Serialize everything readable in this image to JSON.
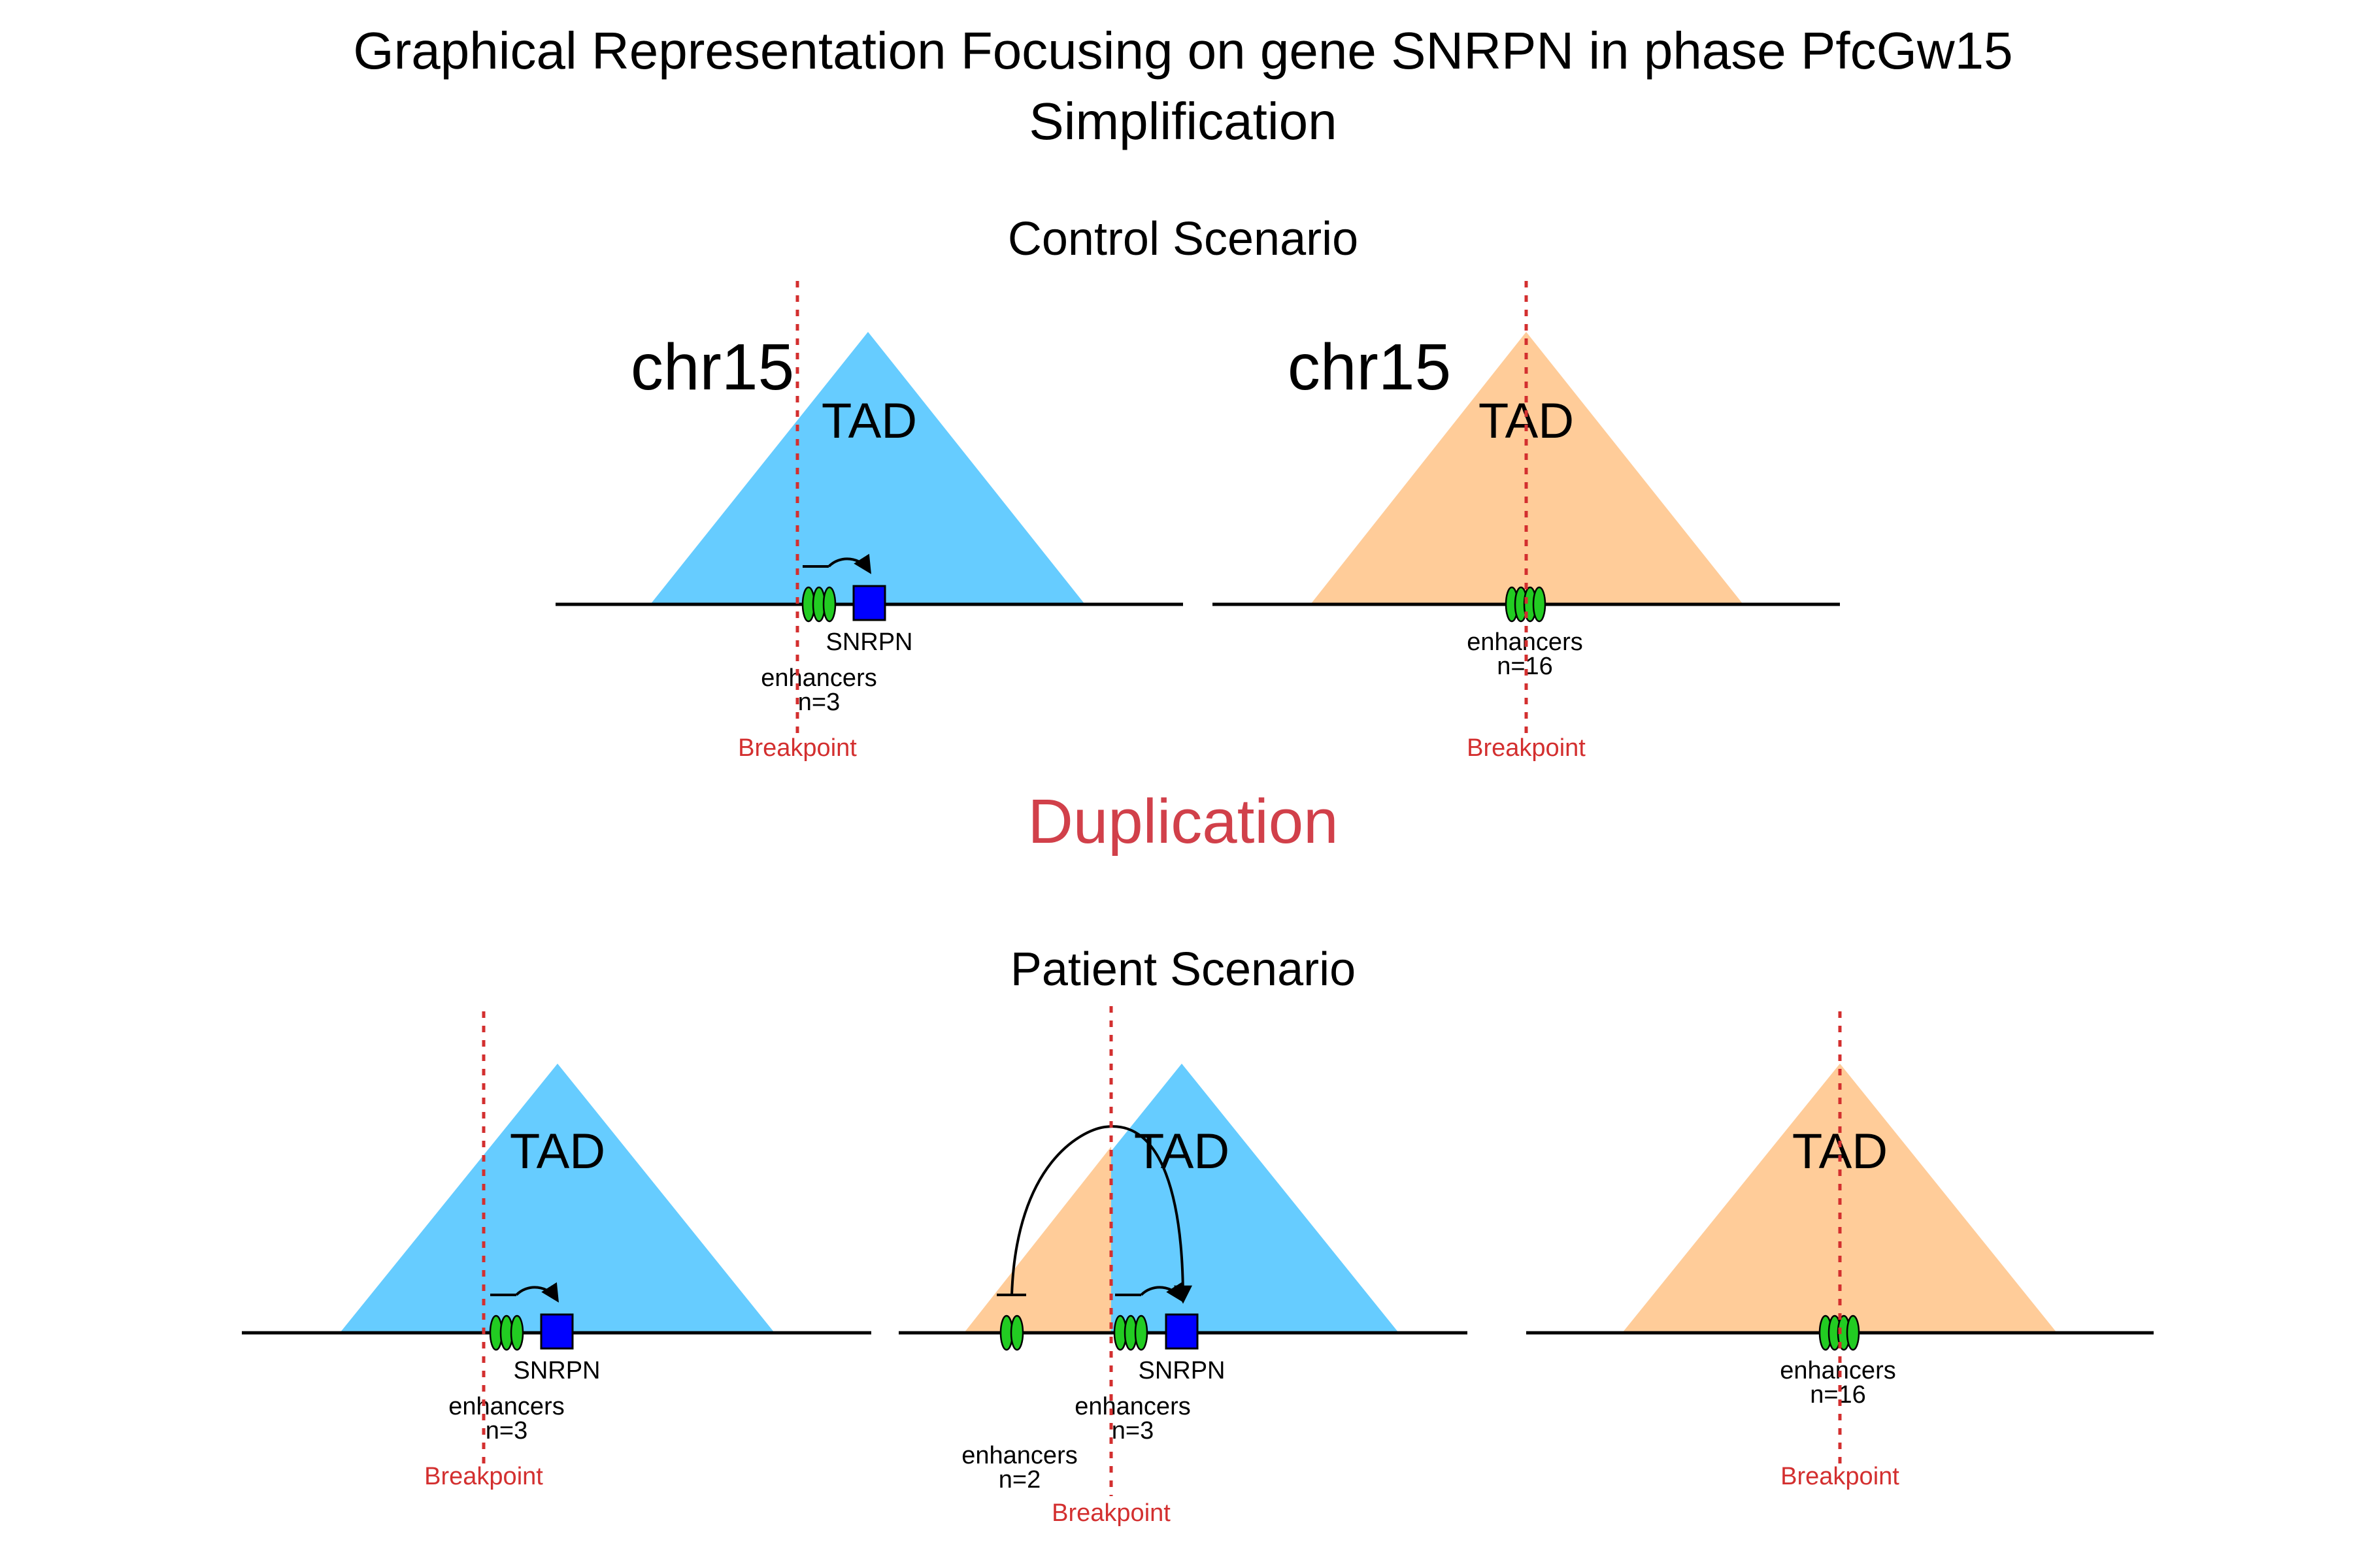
{
  "title": {
    "line1": "Graphical Representation Focusing on gene SNRPN in phase PfcGw15",
    "line2": "Simplification"
  },
  "sections": {
    "control": "Control Scenario",
    "event": "Duplication",
    "patient": "Patient Scenario"
  },
  "colors": {
    "tad_blue": "#66CCFF",
    "tad_orange": "#FFCC99",
    "enhancer_green": "#22CC22",
    "gene_blue": "#0000FF",
    "breakpoint_red": "#D32F2F",
    "event_red": "#D1404A"
  },
  "labels": {
    "chromosome": "chr15",
    "tad": "TAD",
    "gene": "SNRPN",
    "enhancers": "enhancers",
    "breakpoint": "Breakpoint"
  },
  "enhancer_groups": {
    "control_left_count": "n=3",
    "control_right_count": "n=16",
    "patient_left_count": "n=3",
    "patient_middle_orange_count": "n=2",
    "patient_middle_blue_count": "n=3",
    "patient_right_count": "n=16"
  }
}
